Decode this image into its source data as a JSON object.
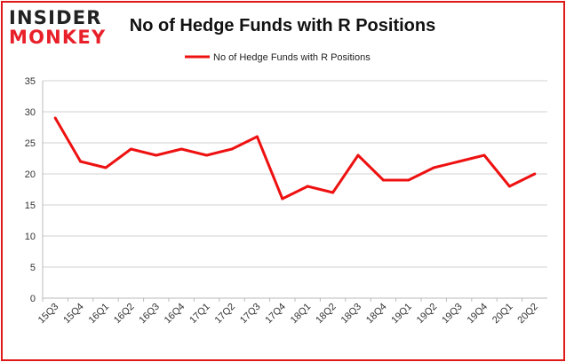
{
  "logo": {
    "top": "INSIDER",
    "bottom": "MONKEY"
  },
  "colors": {
    "series": "#ee1111",
    "grid": "#d0d0d0",
    "border": "#e01818",
    "logo_red": "#e8202a"
  },
  "chart_data": {
    "type": "line",
    "title": "No of Hedge Funds with R Positions",
    "xlabel": "",
    "ylabel": "",
    "ylim": [
      0,
      35
    ],
    "yticks": [
      0,
      5,
      10,
      15,
      20,
      25,
      30,
      35
    ],
    "grid": true,
    "legend_position": "top-center",
    "categories": [
      "15Q3",
      "15Q4",
      "16Q1",
      "16Q2",
      "16Q3",
      "16Q4",
      "17Q1",
      "17Q2",
      "17Q3",
      "17Q4",
      "18Q1",
      "18Q2",
      "18Q3",
      "18Q4",
      "19Q1",
      "19Q2",
      "19Q3",
      "19Q4",
      "20Q1",
      "20Q2"
    ],
    "series": [
      {
        "name": "No of Hedge Funds with R Positions",
        "color": "#ee1111",
        "values": [
          29,
          22,
          21,
          24,
          23,
          24,
          23,
          24,
          26,
          16,
          18,
          17,
          23,
          19,
          19,
          21,
          22,
          23,
          18,
          20
        ]
      }
    ]
  }
}
